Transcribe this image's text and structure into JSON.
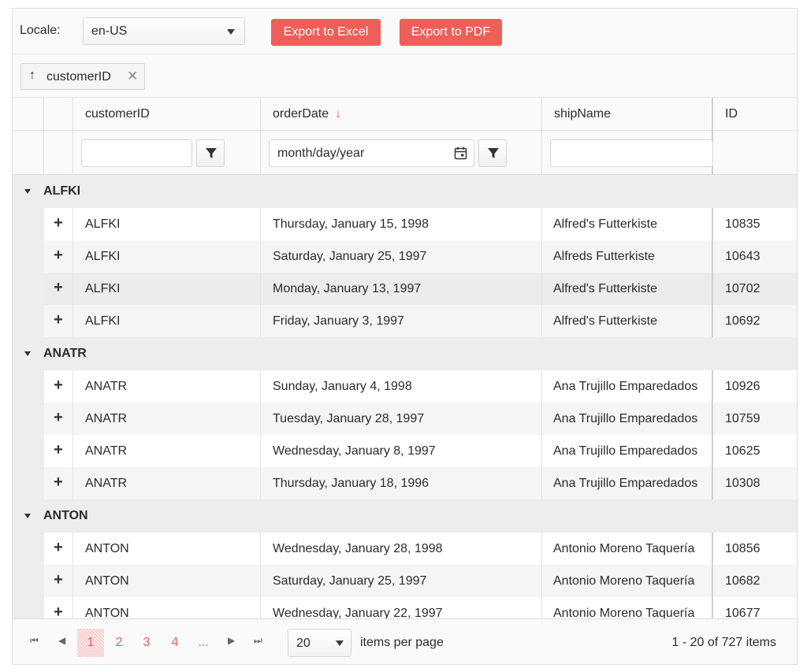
{
  "toolbar": {
    "locale_label": "Locale:",
    "locale_value": "en-US",
    "export_excel": "Export to Excel",
    "export_pdf": "Export to PDF"
  },
  "group_panel": {
    "chip_label": "customerID",
    "sort_icon": "arrow-up-icon",
    "close_icon": "close-icon"
  },
  "columns": {
    "customerID": "customerID",
    "orderDate": "orderDate",
    "shipName": "shipName",
    "ID": "ID"
  },
  "filters": {
    "customerID": "",
    "orderDate_placeholder": "month/day/year",
    "shipName": ""
  },
  "groups": [
    {
      "name": "ALFKI",
      "rows": [
        {
          "customerID": "ALFKI",
          "orderDate": "Thursday, January 15, 1998",
          "shipName": "Alfred's Futterkiste",
          "id": "10835"
        },
        {
          "customerID": "ALFKI",
          "orderDate": "Saturday, January 25, 1997",
          "shipName": "Alfreds Futterkiste",
          "id": "10643"
        },
        {
          "customerID": "ALFKI",
          "orderDate": "Monday, January 13, 1997",
          "shipName": "Alfred's Futterkiste",
          "id": "10702"
        },
        {
          "customerID": "ALFKI",
          "orderDate": "Friday, January 3, 1997",
          "shipName": "Alfred's Futterkiste",
          "id": "10692"
        }
      ]
    },
    {
      "name": "ANATR",
      "rows": [
        {
          "customerID": "ANATR",
          "orderDate": "Sunday, January 4, 1998",
          "shipName": "Ana Trujillo Emparedados",
          "id": "10926"
        },
        {
          "customerID": "ANATR",
          "orderDate": "Tuesday, January 28, 1997",
          "shipName": "Ana Trujillo Emparedados",
          "id": "10759"
        },
        {
          "customerID": "ANATR",
          "orderDate": "Wednesday, January 8, 1997",
          "shipName": "Ana Trujillo Emparedados",
          "id": "10625"
        },
        {
          "customerID": "ANATR",
          "orderDate": "Thursday, January 18, 1996",
          "shipName": "Ana Trujillo Emparedados",
          "id": "10308"
        }
      ]
    },
    {
      "name": "ANTON",
      "rows": [
        {
          "customerID": "ANTON",
          "orderDate": "Wednesday, January 28, 1998",
          "shipName": "Antonio Moreno Taquería",
          "id": "10856"
        },
        {
          "customerID": "ANTON",
          "orderDate": "Saturday, January 25, 1997",
          "shipName": "Antonio Moreno Taquería",
          "id": "10682"
        },
        {
          "customerID": "ANTON",
          "orderDate": "Wednesday, January 22, 1997",
          "shipName": "Antonio Moreno Taquería",
          "id": "10677"
        }
      ]
    }
  ],
  "pager": {
    "pages": [
      "1",
      "2",
      "3",
      "4",
      "..."
    ],
    "active_page": "1",
    "page_size": "20",
    "items_per_page_label": "items per page",
    "info": "1 - 20 of 727 items"
  },
  "colors": {
    "accent": "#ee5f59",
    "group_bg": "#ededed",
    "alt_row": "#f5f5f5"
  }
}
